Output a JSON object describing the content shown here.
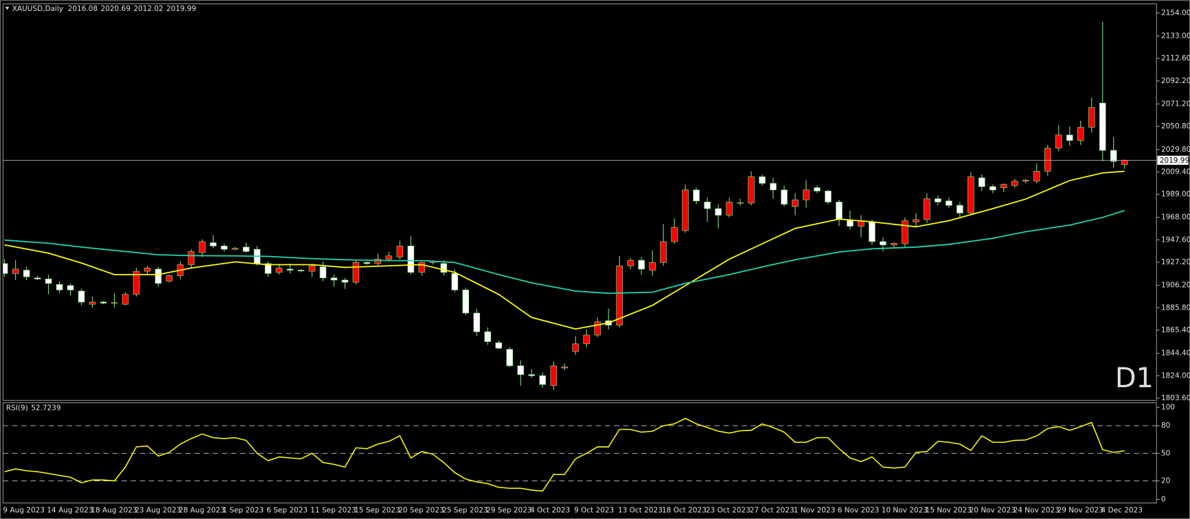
{
  "chart_data": [
    {
      "type": "candlestick",
      "title": "XAUUSD,Daily",
      "categories": [
        "9 Aug 2023",
        null,
        null,
        null,
        "14 Aug 2023",
        null,
        null,
        null,
        "18 Aug 2023",
        null,
        null,
        null,
        "23 Aug 2023",
        null,
        null,
        null,
        "28 Aug 2023",
        null,
        null,
        null,
        "1 Sep 2023",
        null,
        null,
        null,
        "6 Sep 2023",
        null,
        null,
        null,
        "11 Sep 2023",
        null,
        null,
        null,
        "15 Sep 2023",
        null,
        null,
        null,
        "20 Sep 2023",
        null,
        null,
        null,
        "25 Sep 2023",
        null,
        null,
        null,
        "29 Sep 2023",
        null,
        null,
        null,
        "4 Oct 2023",
        null,
        null,
        null,
        "9 Oct 2023",
        null,
        null,
        null,
        "13 Oct 2023",
        null,
        null,
        null,
        "18 Oct 2023",
        null,
        null,
        null,
        "23 Oct 2023",
        null,
        null,
        null,
        "27 Oct 2023",
        null,
        null,
        null,
        "1 Nov 2023",
        null,
        null,
        null,
        "6 Nov 2023",
        null,
        null,
        null,
        "10 Nov 2023",
        null,
        null,
        null,
        "15 Nov 2023",
        null,
        null,
        null,
        "20 Nov 2023",
        null,
        null,
        null,
        "24 Nov 2023",
        null,
        null,
        null,
        "29 Nov 2023",
        null,
        null,
        null,
        "4 Dec 2023",
        null,
        null
      ],
      "open": [
        1926,
        1917,
        1920,
        1913,
        1912,
        1907,
        1906,
        1901,
        1889,
        1891,
        1890,
        1889,
        1898,
        1919,
        1921,
        1910,
        1915,
        1925,
        1936,
        1945,
        1942,
        1939,
        1941,
        1939,
        1926,
        1918,
        1921,
        1920,
        1919,
        1923,
        1913,
        1911,
        1909,
        1927,
        1926,
        1930,
        1932,
        1942,
        1918,
        1927,
        1926,
        1917,
        1902,
        1881,
        1864,
        1854,
        1848,
        1833,
        1825,
        1824,
        1815,
        1831,
        1846,
        1853,
        1861,
        1874,
        1870,
        1924,
        1929,
        1920,
        1927,
        1946,
        1956,
        1993,
        1982,
        1976,
        1970,
        1981,
        1981,
        2005,
        1999,
        1993,
        1978,
        1984,
        1995,
        1992,
        1982,
        1966,
        1960,
        1964,
        1946,
        1943,
        1944,
        1964,
        1966,
        1985,
        1983,
        1979,
        1972,
        2004,
        1996,
        1995,
        1997,
        2001,
        2001,
        2010,
        2031,
        2043,
        2038,
        2050,
        2072,
        2029,
        2016.08
      ],
      "high": [
        1930,
        1929,
        1923,
        1915,
        1916,
        1910,
        1908,
        1903,
        1896,
        1892,
        1899,
        1900,
        1922,
        1924,
        1923,
        1916,
        1928,
        1939,
        1948,
        1952,
        1944,
        1941,
        1945,
        1942,
        1928,
        1925,
        1926,
        1921,
        1926,
        1928,
        1916,
        1913,
        1929,
        1928,
        1935,
        1937,
        1947,
        1951,
        1928,
        1929,
        1929,
        1921,
        1904,
        1885,
        1868,
        1856,
        1850,
        1838,
        1830,
        1827,
        1837,
        1835,
        1860,
        1866,
        1877,
        1885,
        1933,
        1931,
        1932,
        1938,
        1962,
        1967,
        1998,
        1995,
        1986,
        1980,
        1986,
        1985,
        2010,
        2007,
        2004,
        1997,
        1990,
        2002,
        1997,
        1993,
        1984,
        1974,
        1970,
        1966,
        1950,
        1945,
        1968,
        1972,
        1990,
        1988,
        1986,
        1982,
        2009,
        2007,
        1998,
        1999,
        2003,
        2003,
        2017,
        2034,
        2052,
        2051,
        2056,
        2077,
        2146,
        2041,
        2020.69
      ],
      "low": [
        1914,
        1911,
        1911,
        1911,
        1898,
        1899,
        1897,
        1888,
        1886,
        1889,
        1886,
        1888,
        1896,
        1916,
        1905,
        1909,
        1912,
        1922,
        1932,
        1940,
        1937,
        1938,
        1936,
        1924,
        1914,
        1916,
        1917,
        1918,
        1914,
        1910,
        1905,
        1903,
        1907,
        1925,
        1924,
        1928,
        1930,
        1916,
        1915,
        1925,
        1915,
        1900,
        1879,
        1860,
        1852,
        1848,
        1832,
        1815,
        1822,
        1813,
        1811,
        1829,
        1843,
        1850,
        1859,
        1866,
        1868,
        1921,
        1916,
        1915,
        1924,
        1944,
        1954,
        1980,
        1964,
        1958,
        1968,
        1979,
        1979,
        1997,
        1985,
        1978,
        1970,
        1977,
        1990,
        1980,
        1960,
        1957,
        1950,
        1943,
        1937,
        1940,
        1941,
        1960,
        1963,
        1979,
        1977,
        1968,
        1970,
        1992,
        1990,
        1991,
        1995,
        1999,
        1999,
        2006,
        2028,
        2033,
        2034,
        2045,
        2019,
        2013,
        2012.02
      ],
      "close": [
        1917,
        1921,
        1914,
        1912,
        1908,
        1902,
        1902,
        1891,
        1891,
        1890,
        1890.5,
        1898,
        1919,
        1922,
        1908,
        1915,
        1925,
        1937,
        1946,
        1942,
        1939,
        1940,
        1937,
        1926,
        1917,
        1922,
        1920,
        1919.5,
        1924,
        1913,
        1911,
        1909,
        1927,
        1926,
        1930,
        1933,
        1942,
        1918,
        1927,
        1928,
        1918,
        1902,
        1881,
        1864,
        1855,
        1849,
        1833,
        1825,
        1824,
        1816,
        1833,
        1832,
        1853,
        1861,
        1873,
        1870,
        1924,
        1929,
        1921,
        1927,
        1946,
        1959,
        1993,
        1983,
        1976,
        1970,
        1982,
        1981.5,
        2005,
        1999,
        1993,
        1980,
        1984,
        1993,
        1992,
        1982,
        1966,
        1960,
        1965,
        1946,
        1943,
        1944.5,
        1965,
        1966,
        1985,
        1982,
        1979,
        1972,
        2005,
        1996,
        1993,
        1998,
        2001,
        2002,
        2010,
        2031,
        2043,
        2038,
        2050,
        2068,
        2029,
        2019,
        2019.99
      ],
      "up_color": "#ff0000",
      "down_color": "#ffffff",
      "wick_color": "#7fe07f",
      "overlays": [
        {
          "color": "#ffff00",
          "x": [
            0,
            4,
            7,
            10,
            14,
            17,
            21,
            24,
            28,
            31,
            35,
            38,
            41,
            45,
            48,
            52,
            55,
            59,
            62,
            66,
            69,
            72,
            76,
            79,
            83,
            86,
            90,
            93,
            97,
            100,
            102
          ],
          "values": [
            1943,
            1935.5,
            1926.5,
            1916,
            1916,
            1922,
            1927.5,
            1925,
            1925,
            1922.5,
            1924,
            1925,
            1918,
            1898,
            1877,
            1866.5,
            1872,
            1888,
            1906,
            1930,
            1944,
            1958,
            1966.5,
            1964,
            1959.5,
            1965,
            1976,
            1984.7,
            2001.5,
            2008.5,
            2010
          ]
        },
        {
          "color": "#20d8b0",
          "x": [
            0,
            4,
            7,
            10,
            14,
            17,
            21,
            24,
            28,
            31,
            35,
            38,
            41,
            45,
            48,
            52,
            55,
            59,
            62,
            66,
            69,
            72,
            76,
            79,
            83,
            86,
            90,
            93,
            97,
            100,
            102
          ],
          "values": [
            1947.4,
            1944.5,
            1941,
            1938,
            1934,
            1933.2,
            1933,
            1932.5,
            1930.5,
            1929.5,
            1928.7,
            1928.7,
            1927,
            1916,
            1908.5,
            1901,
            1899,
            1900,
            1908,
            1916,
            1923,
            1929.5,
            1936.5,
            1939.5,
            1941,
            1943.5,
            1949,
            1955,
            1961,
            1968,
            1974.3
          ]
        }
      ],
      "price_line_color": "#b0b0b0",
      "ylim": [
        1801.5,
        2162.3
      ],
      "yticks": [
        {
          "value": 2154,
          "label": "2154.00"
        },
        {
          "value": 2133,
          "label": "2133.00"
        },
        {
          "value": 2112.6,
          "label": "2112.60"
        },
        {
          "value": 2092.2,
          "label": "2092.20"
        },
        {
          "value": 2071.2,
          "label": "2071.20"
        },
        {
          "value": 2050.8,
          "label": "2050.80"
        },
        {
          "value": 2029.8,
          "label": "2029.80"
        },
        {
          "value": 2009.4,
          "label": "2009.40"
        },
        {
          "value": 1989,
          "label": "1989.00"
        },
        {
          "value": 1968,
          "label": "1968.00"
        },
        {
          "value": 1947.6,
          "label": "1947.60"
        },
        {
          "value": 1927.2,
          "label": "1927.20"
        },
        {
          "value": 1906.2,
          "label": "1906.20"
        },
        {
          "value": 1885.8,
          "label": "1885.80"
        },
        {
          "value": 1865.4,
          "label": "1865.40"
        },
        {
          "value": 1844.4,
          "label": "1844.40"
        },
        {
          "value": 1824,
          "label": "1824.00"
        },
        {
          "value": 1803.6,
          "label": "1803.60"
        }
      ],
      "annotation": {
        "text": "D1",
        "color": "#e00000"
      }
    },
    {
      "type": "line",
      "title": "RSI(9)",
      "color": "#ffff00",
      "values": [
        30,
        33,
        31,
        30,
        28,
        26,
        24,
        18,
        21,
        21,
        20,
        35,
        57,
        58,
        47,
        51,
        60,
        66,
        71,
        67,
        66,
        67,
        64,
        50,
        42,
        46,
        45,
        44,
        50,
        40,
        38,
        35,
        56,
        55,
        60,
        63,
        69,
        45,
        52,
        49,
        40,
        29,
        22,
        19,
        17,
        13,
        12,
        12,
        10,
        9,
        27,
        27,
        44,
        50,
        57,
        57,
        76,
        76,
        73,
        74,
        80,
        82,
        88,
        82,
        78,
        74,
        72,
        74.5,
        75,
        82,
        78,
        73,
        62,
        62,
        67,
        67,
        55,
        45,
        41,
        46,
        35,
        34,
        35,
        51,
        52,
        63,
        62,
        60,
        53,
        69,
        62,
        62,
        64,
        64.5,
        69,
        77,
        79,
        75,
        79,
        83.5,
        54,
        51,
        52.7239
      ],
      "ylim": [
        -4,
        105
      ],
      "yticks": [
        0,
        20,
        50,
        80,
        100
      ],
      "levels": [
        20,
        50,
        80
      ],
      "level_color": "#c8c8c8"
    }
  ]
}
